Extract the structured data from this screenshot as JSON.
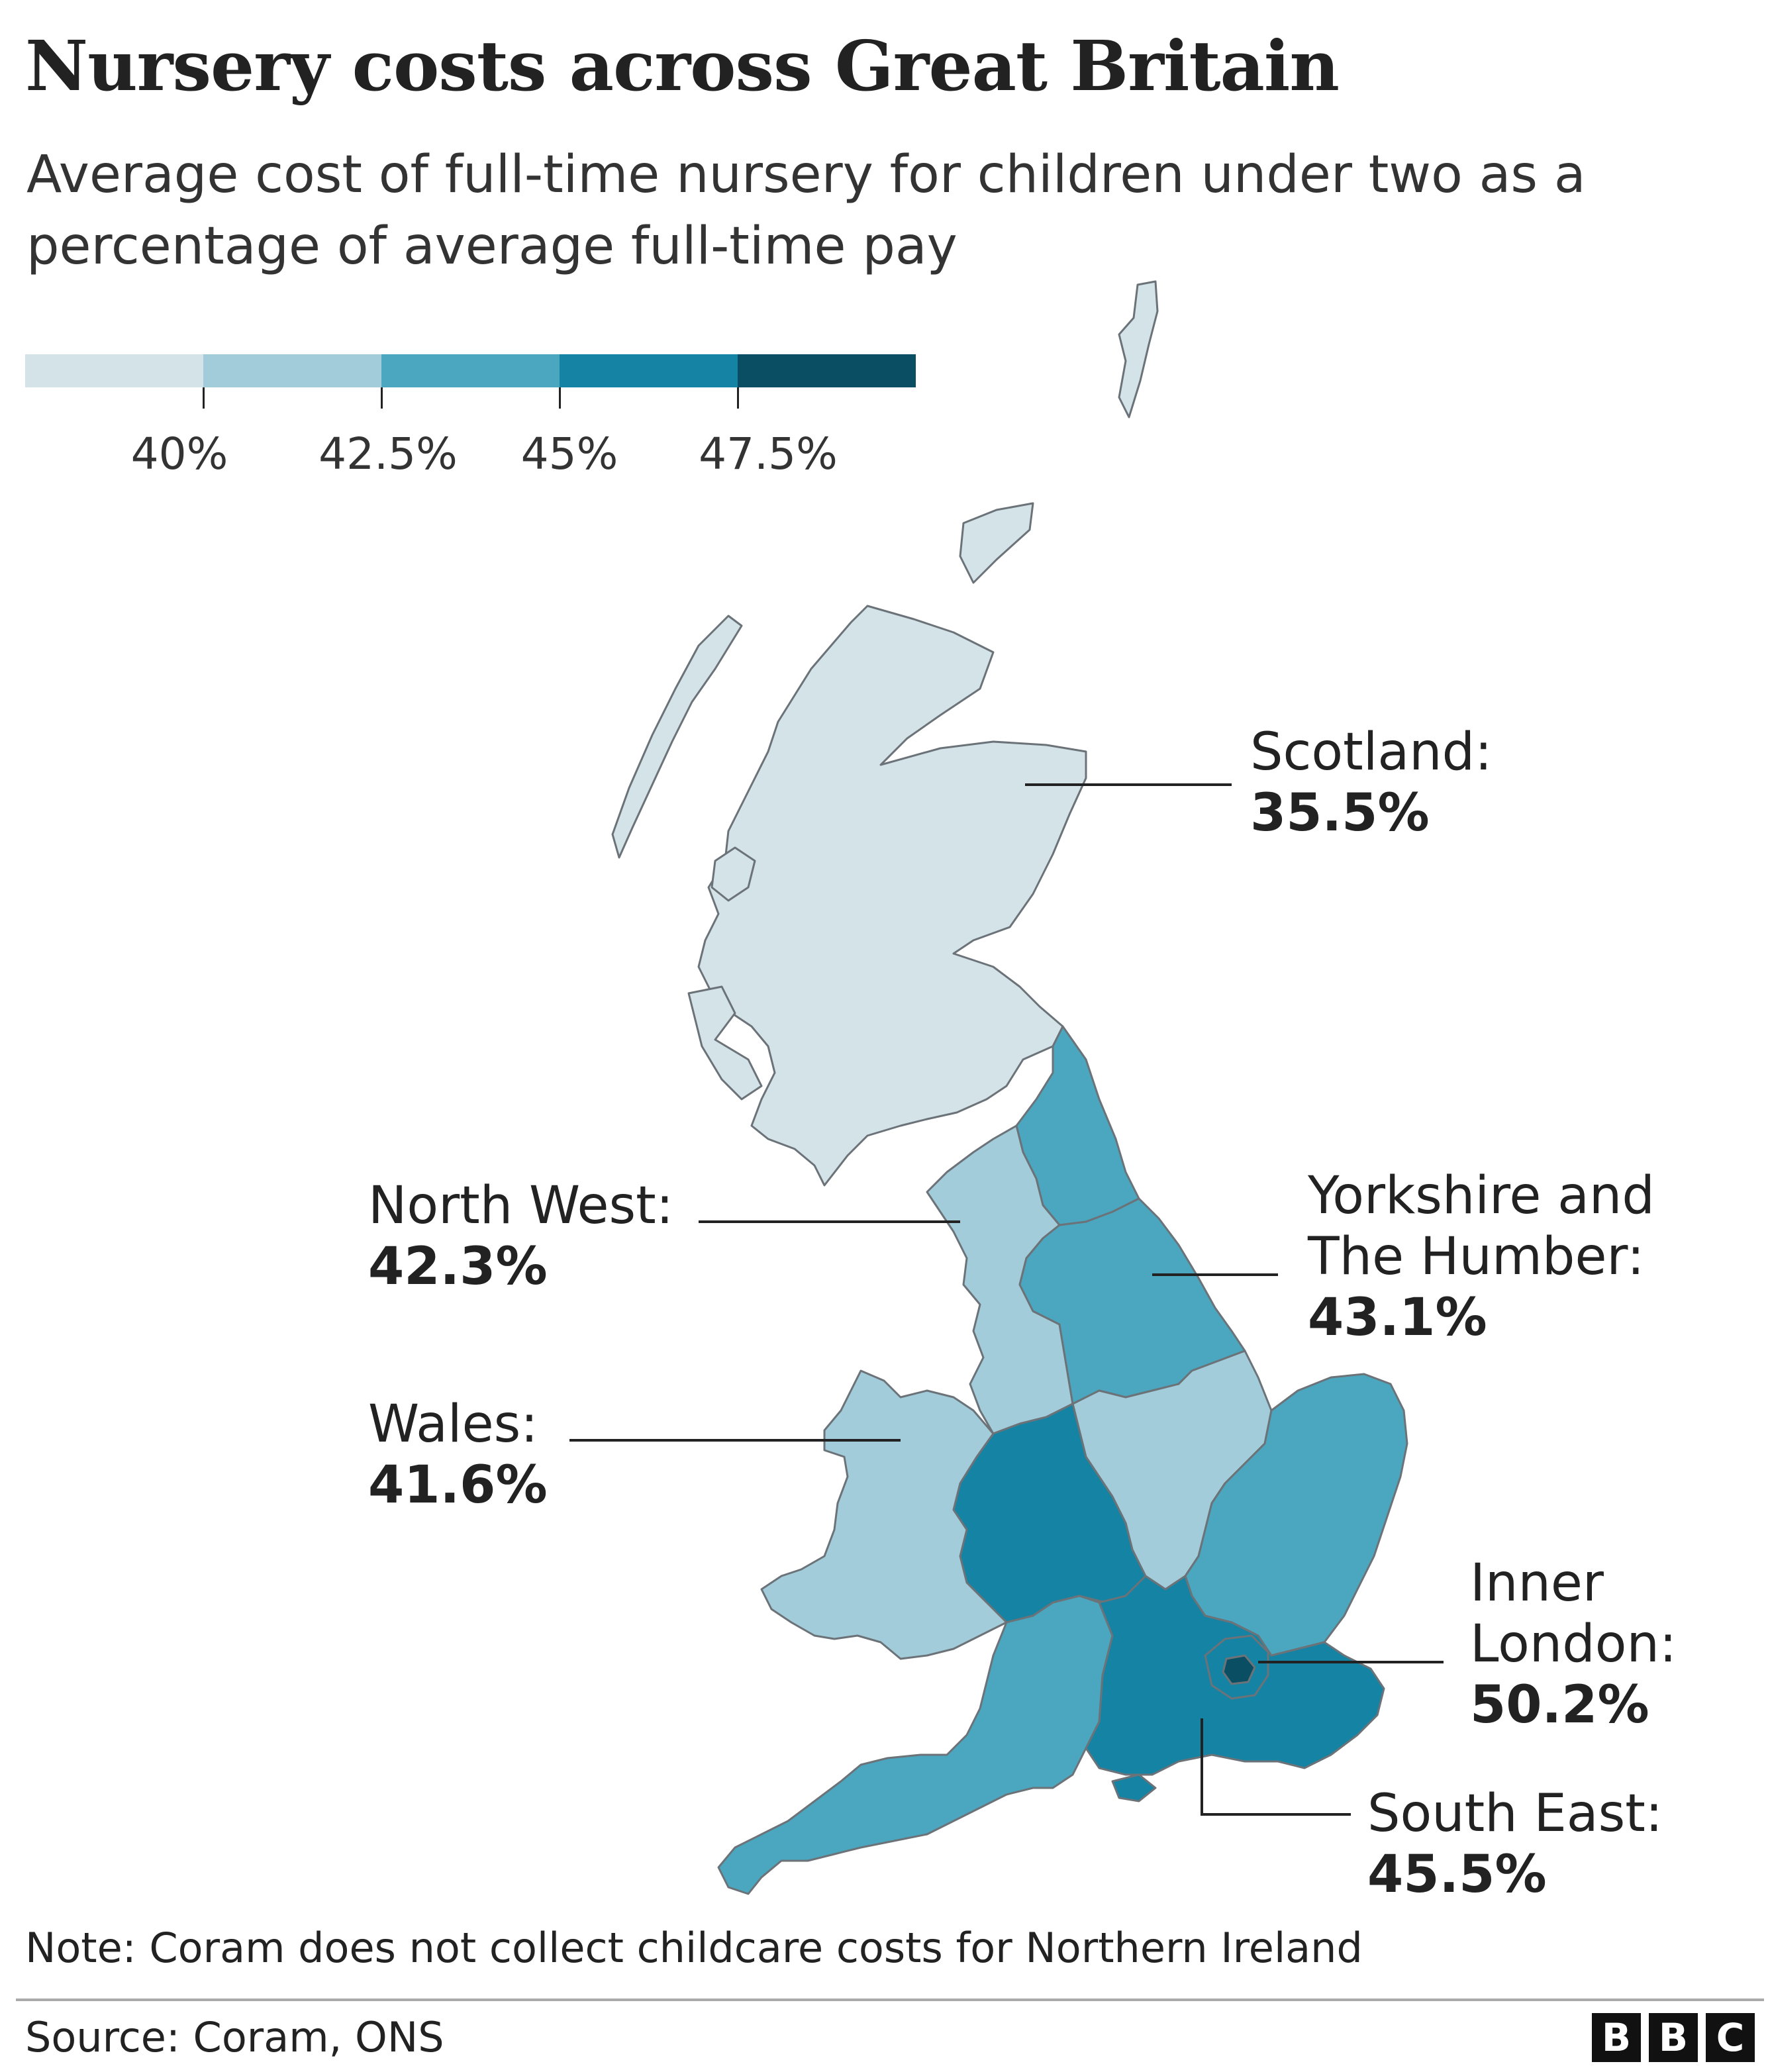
{
  "title": "Nursery costs across Great Britain",
  "subtitle": "Average cost of full-time nursery for children under two as a percentage of average full-time pay",
  "legend": {
    "colors": [
      "#d3e3e8",
      "#a3ccda",
      "#4ba7bf",
      "#1483a4",
      "#0a4e63"
    ],
    "ticks": [
      "40%",
      "42.5%",
      "45%",
      "47.5%"
    ],
    "tick_values": [
      40,
      42.5,
      45,
      47.5
    ]
  },
  "regions": [
    {
      "id": "scotland",
      "name": "Scotland:",
      "value": 35.5,
      "label": "35.5%",
      "color": "#d3e3e8"
    },
    {
      "id": "north-west",
      "name": "North West:",
      "value": 42.3,
      "label": "42.3%",
      "color": "#a3ccda"
    },
    {
      "id": "yorkshire",
      "name": "Yorkshire and The Humber:",
      "value": 43.1,
      "label": "43.1%",
      "color": "#4ba7bf"
    },
    {
      "id": "wales",
      "name": "Wales:",
      "value": 41.6,
      "label": "41.6%",
      "color": "#a3ccda"
    },
    {
      "id": "inner-london",
      "name": "Inner London:",
      "value": 50.2,
      "label": "50.2%",
      "color": "#0a4e63"
    },
    {
      "id": "south-east",
      "name": "South East:",
      "value": 45.5,
      "label": "45.5%",
      "color": "#1483a4"
    }
  ],
  "other_region_colors": {
    "north-east": "#4ba7bf",
    "east-midlands": "#a3ccda",
    "west-midlands": "#1483a4",
    "east-of-england": "#4ba7bf",
    "south-west": "#4ba7bf",
    "outer-london": "#1483a4"
  },
  "note": "Note: Coram does not collect childcare costs for Northern Ireland",
  "source": "Source: Coram, ONS",
  "brand": [
    "B",
    "B",
    "C"
  ]
}
